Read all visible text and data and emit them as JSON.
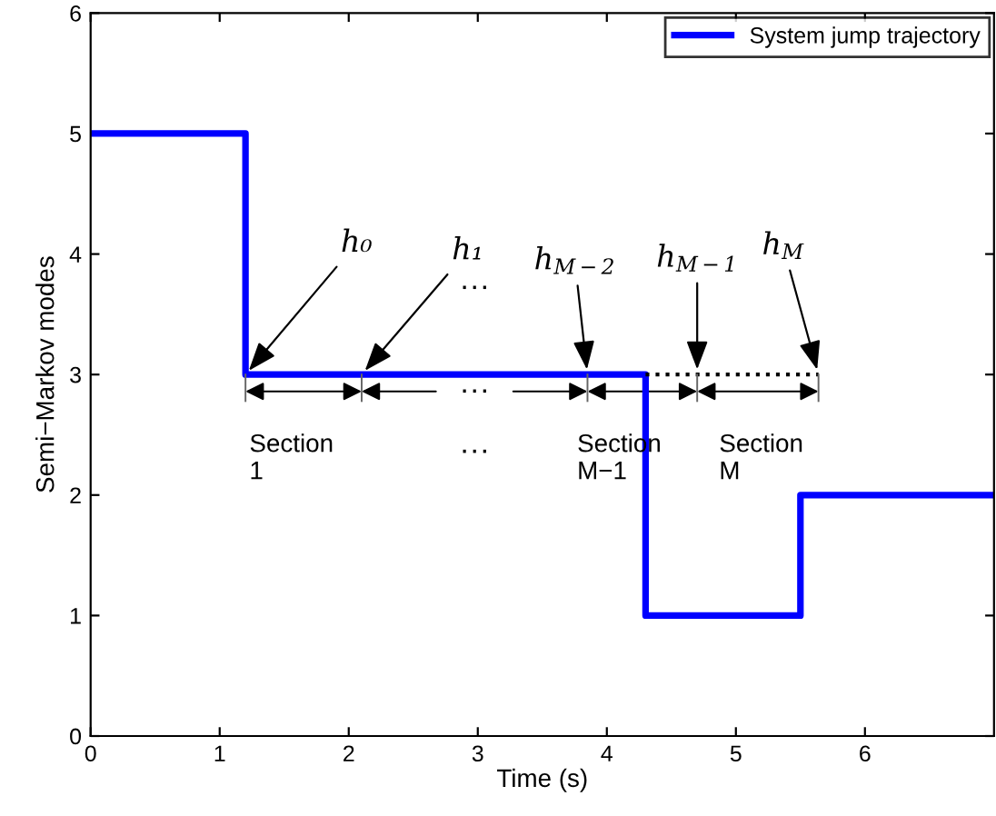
{
  "chart_data": {
    "type": "step",
    "xlabel": "Time (s)",
    "ylabel": "Semi−Markov modes",
    "xlim": [
      0,
      7
    ],
    "ylim": [
      0,
      6
    ],
    "xticks": [
      0,
      1,
      2,
      3,
      4,
      5,
      6
    ],
    "yticks": [
      0,
      1,
      2,
      3,
      4,
      5,
      6
    ],
    "legend": "top right",
    "grid": false,
    "series": [
      {
        "name": "System jump trajectory",
        "color": "#0000ff",
        "x": [
          0,
          1.2,
          4.3,
          5.5,
          7
        ],
        "values": [
          5,
          3,
          1,
          2,
          2
        ]
      },
      {
        "type": "line",
        "line_style": "dotted",
        "color": "#000000",
        "x": [
          4.3,
          5.64
        ],
        "values": [
          3,
          3
        ]
      }
    ],
    "annotations": [
      {
        "text": "h₀",
        "x": 1.2,
        "y": 3
      },
      {
        "text": "h₁",
        "x": 2.1,
        "y": 3
      },
      {
        "text": "h$_{M−2}$",
        "x": 3.85,
        "y": 3
      },
      {
        "text": "h$_{M−1}$",
        "x": 4.7,
        "y": 3
      },
      {
        "text": "h$_{M}$",
        "x": 5.64,
        "y": 3
      },
      "···",
      "···",
      "Section\n1",
      "···",
      "Section\nM−1",
      "Section\nM"
    ]
  }
}
